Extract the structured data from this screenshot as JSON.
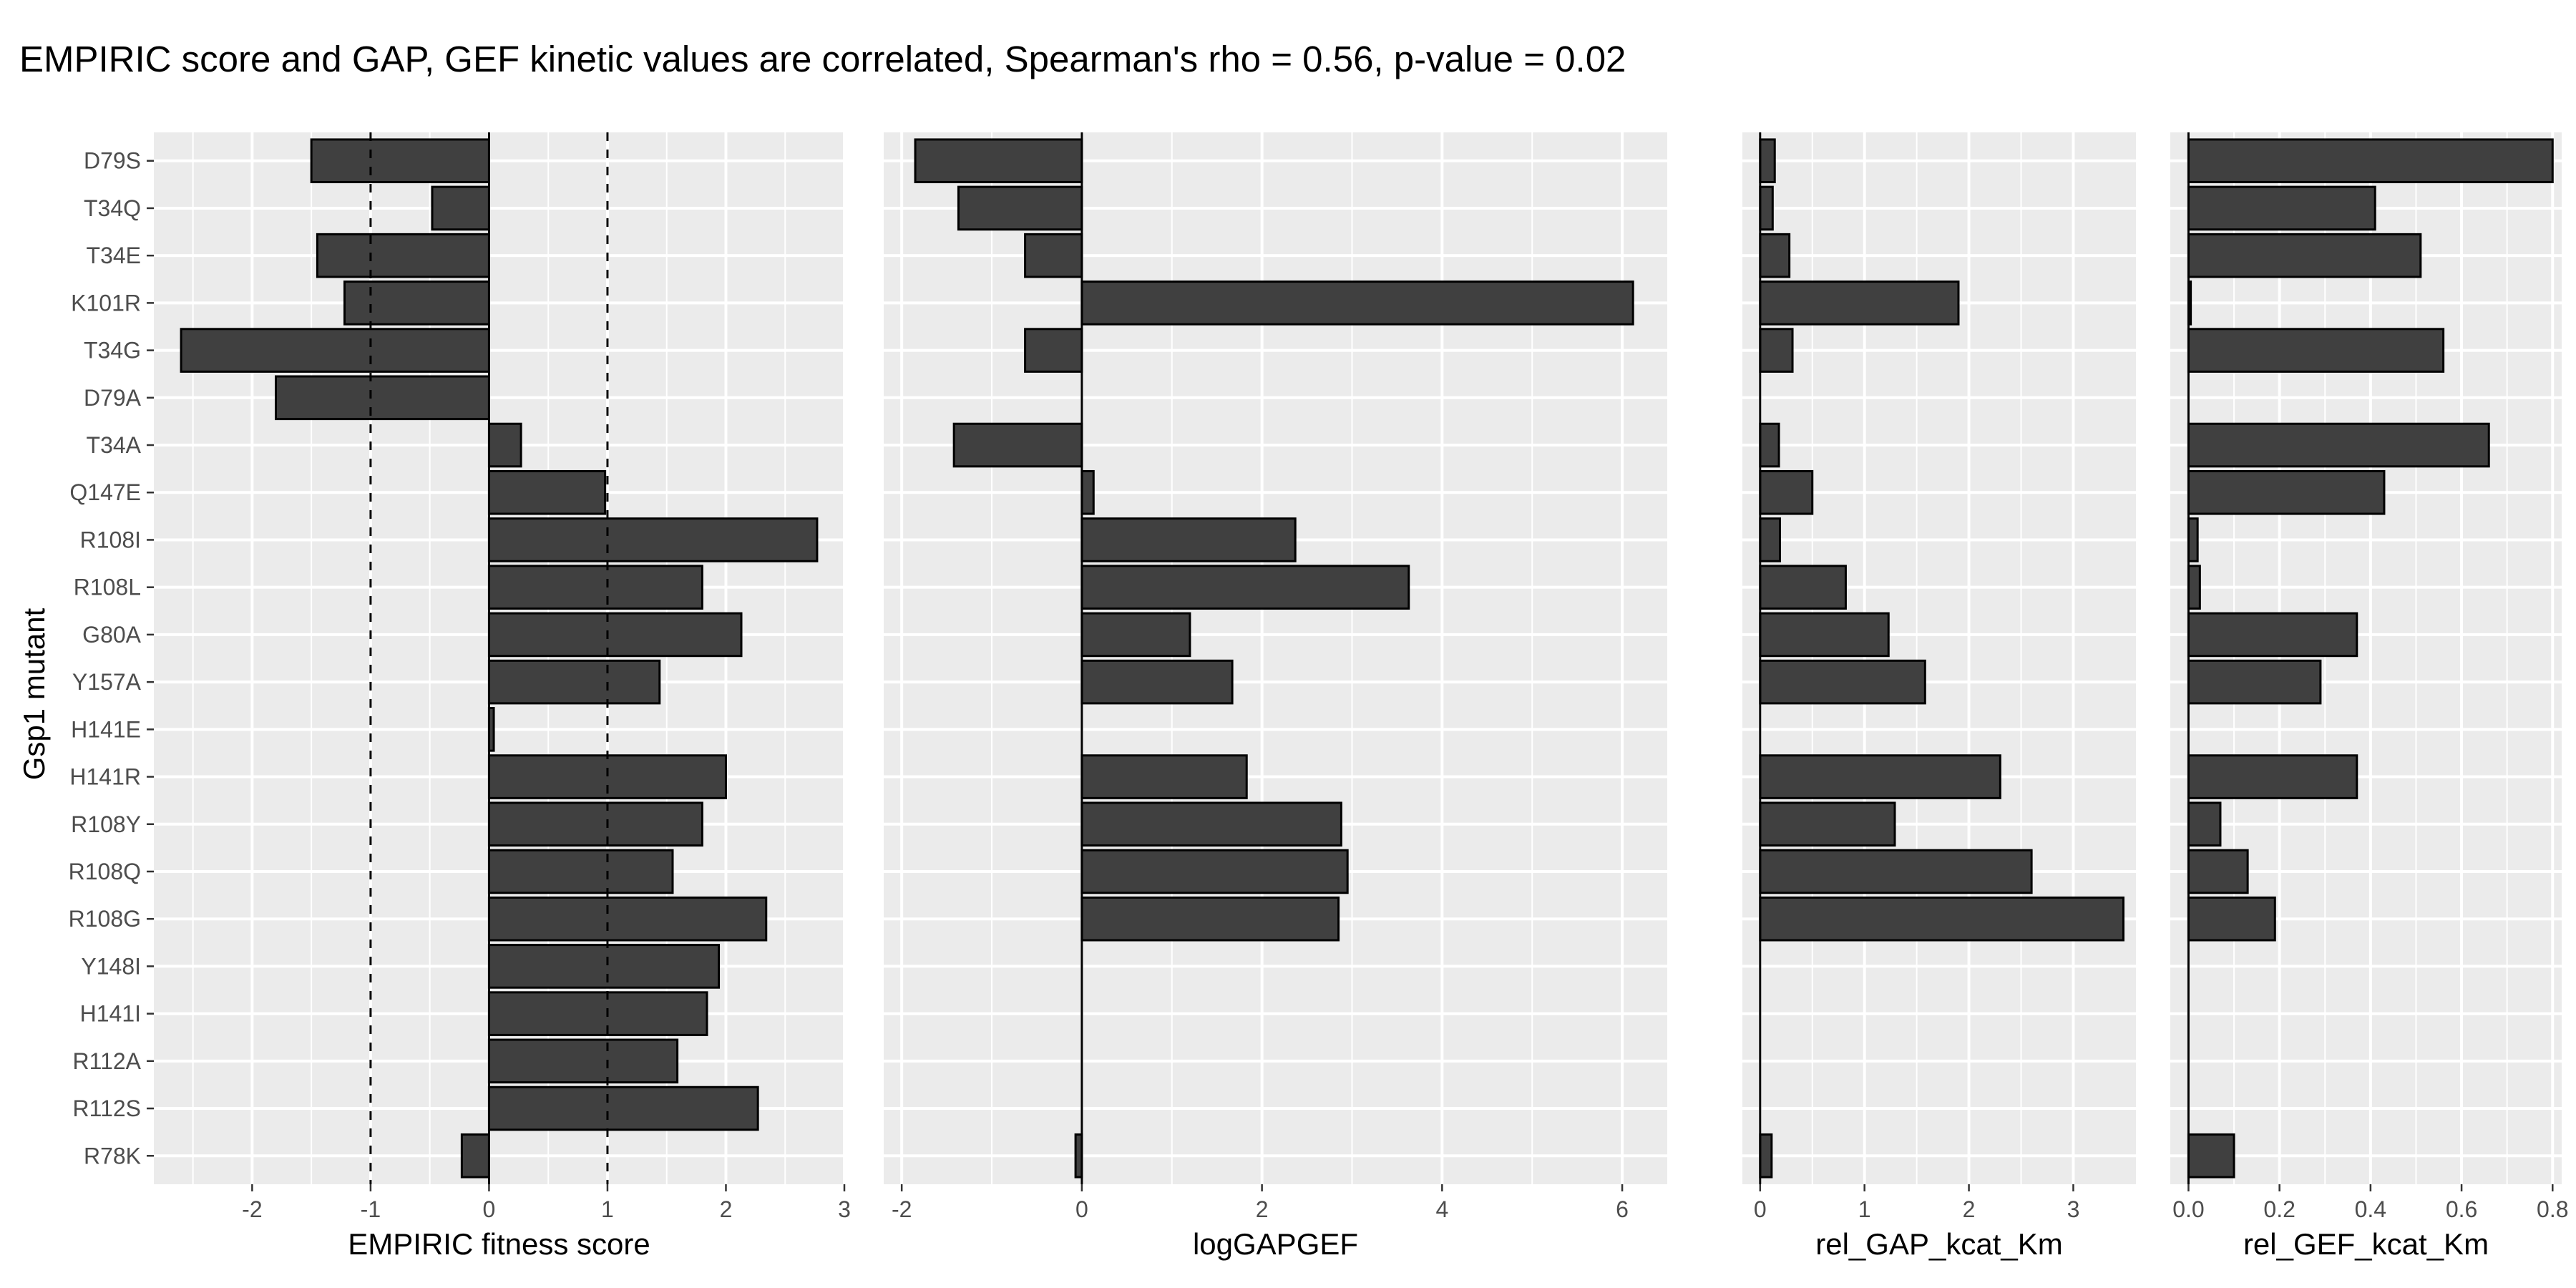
{
  "chart_data": {
    "type": "bar",
    "orientation": "horizontal",
    "title": "EMPIRIC score and GAP, GEF kinetic values are correlated, Spearman's rho = 0.56, p-value = 0.02",
    "ylabel": "Gsp1 mutant",
    "grid": true,
    "categories": [
      "D79S",
      "T34Q",
      "T34E",
      "K101R",
      "T34G",
      "D79A",
      "T34A",
      "Q147E",
      "R108I",
      "R108L",
      "G80A",
      "Y157A",
      "H141E",
      "H141R",
      "R108Y",
      "R108Q",
      "R108G",
      "Y148I",
      "H141I",
      "R112A",
      "R112S",
      "R78K"
    ],
    "panels": [
      {
        "xlabel": "EMPIRIC fitness score",
        "xlim": [
          -2.83,
          3.0
        ],
        "xticks": [
          -2,
          -1,
          0,
          1,
          2,
          3
        ],
        "reference_lines": [
          -1,
          1
        ],
        "values": [
          -1.5,
          -0.48,
          -1.45,
          -1.22,
          -2.6,
          -1.8,
          0.27,
          0.98,
          2.77,
          1.8,
          2.13,
          1.44,
          0.04,
          2.0,
          1.8,
          1.55,
          2.34,
          1.94,
          1.84,
          1.59,
          2.27,
          -0.23
        ]
      },
      {
        "xlabel": "logGAPGEF",
        "xlim": [
          -2.2,
          6.5
        ],
        "xticks": [
          -2,
          0,
          2,
          4,
          6
        ],
        "values": [
          -1.85,
          -1.37,
          -0.63,
          6.12,
          -0.63,
          null,
          -1.42,
          0.13,
          2.37,
          3.63,
          1.2,
          1.67,
          null,
          1.83,
          2.88,
          2.95,
          2.85,
          null,
          null,
          null,
          null,
          -0.07
        ]
      },
      {
        "xlabel": "rel_GAP_kcat_Km",
        "xlim": [
          -0.17,
          3.6
        ],
        "xticks": [
          0,
          1,
          2,
          3
        ],
        "values": [
          0.14,
          0.12,
          0.28,
          1.9,
          0.31,
          null,
          0.18,
          0.5,
          0.19,
          0.82,
          1.23,
          1.58,
          null,
          2.3,
          1.29,
          2.6,
          3.48,
          null,
          null,
          null,
          null,
          0.11
        ]
      },
      {
        "xlabel": "rel_GEF_kcat_Km",
        "xlim": [
          -0.04,
          0.82
        ],
        "xticks": [
          0.0,
          0.2,
          0.4,
          0.6,
          0.8
        ],
        "xtick_labels": [
          "0.0",
          "0.2",
          "0.4",
          "0.6",
          "0.8"
        ],
        "values": [
          0.8,
          0.41,
          0.51,
          0.005,
          0.56,
          null,
          0.66,
          0.43,
          0.02,
          0.025,
          0.37,
          0.29,
          null,
          0.37,
          0.07,
          0.13,
          0.19,
          null,
          null,
          null,
          null,
          0.1
        ]
      }
    ]
  }
}
